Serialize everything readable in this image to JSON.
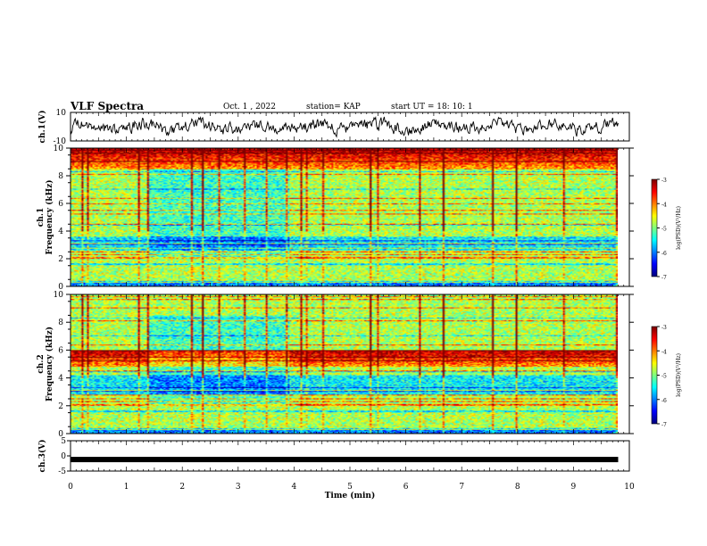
{
  "header": {
    "title": "VLF Spectra",
    "date": "Oct. 1  , 2022",
    "station": "station= KAP",
    "start": "start  UT  =   18: 10: 1"
  },
  "chart_data": [
    {
      "type": "line",
      "name": "ch1-waveform",
      "ylabel": "ch.1(V)",
      "ylim": [
        -10,
        10
      ],
      "yticks": [
        "10",
        "-10"
      ],
      "xlim": [
        0,
        10
      ],
      "x_end": 9.8,
      "amplitude_range": [
        -8,
        8
      ]
    },
    {
      "type": "heatmap",
      "name": "ch1-spectrogram",
      "ylabel": "ch.1\nFrequency  (kHz)",
      "ylim": [
        0,
        10
      ],
      "yticks": [
        0,
        2,
        4,
        6,
        8,
        10
      ],
      "xlim": [
        0,
        10
      ],
      "x_end": 9.8,
      "colorbar": {
        "label": "log(PSD)(V²/Hz)",
        "range": [
          -7,
          -3
        ],
        "ticks": [
          "-3",
          "-4",
          "-5",
          "-6",
          "-7"
        ]
      },
      "quiet_interval_min": [
        1.4,
        3.9
      ],
      "hot_band_khz": [
        8.5,
        10
      ],
      "dark_band_khz": [
        2.6,
        3.6
      ]
    },
    {
      "type": "heatmap",
      "name": "ch2-spectrogram",
      "ylabel": "ch.2\nFrequency  (kHz)",
      "ylim": [
        0,
        10
      ],
      "yticks": [
        0,
        2,
        4,
        6,
        8,
        10
      ],
      "xlim": [
        0,
        10
      ],
      "x_end": 9.8,
      "colorbar": {
        "label": "log(PSD)(V²/Hz)",
        "range": [
          -7,
          -3
        ],
        "ticks": [
          "-3",
          "-4",
          "-5",
          "-6",
          "-7"
        ]
      },
      "quiet_interval_min": [
        1.4,
        3.9
      ],
      "hot_band_khz": [
        4.8,
        6.0
      ],
      "dark_band_khz": [
        2.8,
        4.2
      ]
    },
    {
      "type": "line",
      "name": "ch3-signal",
      "ylabel": "ch.3(V)",
      "ylim": [
        -5,
        5
      ],
      "yticks": [
        "5",
        "0",
        "-5"
      ],
      "xlim": [
        0,
        10
      ],
      "x_end": 9.8,
      "level": -1.2
    }
  ],
  "xaxis": {
    "label": "Time  (min)",
    "ticks": [
      "0",
      "1",
      "2",
      "3",
      "4",
      "5",
      "6",
      "7",
      "8",
      "9",
      "10"
    ]
  }
}
